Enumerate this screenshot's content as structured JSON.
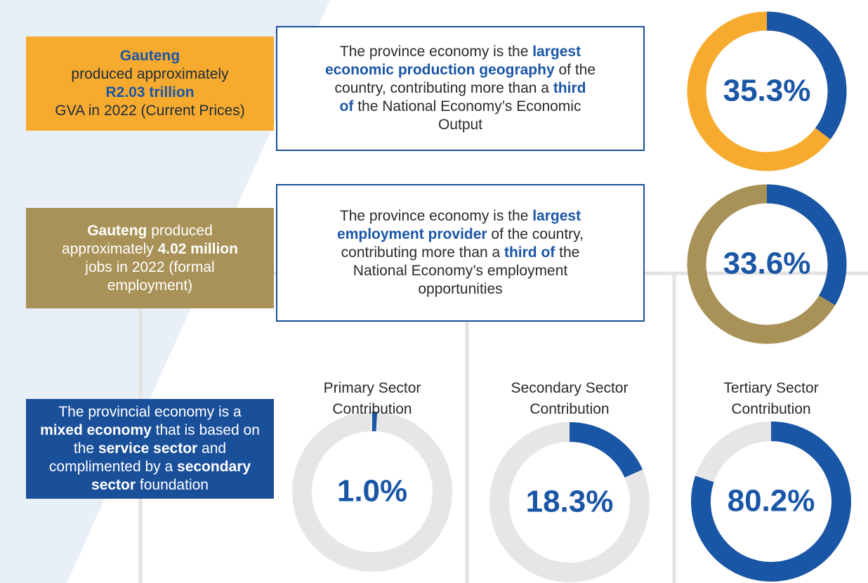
{
  "panels": [
    {
      "box": {
        "color": "#f7ab2e",
        "bold_color": "#1a56a6",
        "text_color": "#1e2a3a",
        "lines": [
          [
            {
              "text": "Gauteng",
              "bold": true
            }
          ],
          [
            {
              "text": "produced approximately",
              "bold": false
            }
          ],
          [
            {
              "text": "R2.03 trillion",
              "bold": true
            }
          ],
          [
            {
              "text": "GVA in 2022 (Current Prices)",
              "bold": false
            }
          ]
        ]
      },
      "desc": {
        "lines": [
          [
            {
              "text": "The province economy is the ",
              "bold": false
            },
            {
              "text": "largest",
              "bold": true
            }
          ],
          [
            {
              "text": "economic production geography",
              "bold": true
            },
            {
              "text": " of the",
              "bold": false
            }
          ],
          [
            {
              "text": "country, contributing more than a ",
              "bold": false
            },
            {
              "text": "third",
              "bold": true
            }
          ],
          [
            {
              "text": "of",
              "bold": true
            },
            {
              "text": " the National Economy’s Economic",
              "bold": false
            }
          ],
          [
            {
              "text": "Output",
              "bold": false
            }
          ]
        ]
      },
      "donut": {
        "value": 35.3,
        "value_label": "35.3%",
        "color": "#1a56a6",
        "ring_color": "#f7ab2e"
      }
    },
    {
      "box": {
        "color": "#a99257",
        "bold_color": "#ffffff",
        "text_color": "#ffffff",
        "lines": [
          [
            {
              "text": "Gauteng",
              "bold": true
            },
            {
              "text": " produced",
              "bold": false
            }
          ],
          [
            {
              "text": "approximately ",
              "bold": false
            },
            {
              "text": "4.02 million",
              "bold": true
            }
          ],
          [
            {
              "text": "jobs in 2022 (formal",
              "bold": false
            }
          ],
          [
            {
              "text": "employment)",
              "bold": false
            }
          ]
        ]
      },
      "desc": {
        "lines": [
          [
            {
              "text": "The province economy is the ",
              "bold": false
            },
            {
              "text": "largest",
              "bold": true
            }
          ],
          [
            {
              "text": "employment provider",
              "bold": true
            },
            {
              "text": " of the country,",
              "bold": false
            }
          ],
          [
            {
              "text": "contributing more than a ",
              "bold": false
            },
            {
              "text": "third of",
              "bold": true
            },
            {
              "text": " the",
              "bold": false
            }
          ],
          [
            {
              "text": "National Economy’s employment",
              "bold": false
            }
          ],
          [
            {
              "text": "opportunities",
              "bold": false
            }
          ]
        ]
      },
      "donut": {
        "value": 33.6,
        "value_label": "33.6%",
        "color": "#1a56a6",
        "ring_color": "#a99257"
      }
    }
  ],
  "sectors": {
    "intro": {
      "color": "#1a4f9a",
      "bold_color": "#ffffff",
      "text_color": "#ffffff",
      "lines": [
        [
          {
            "text": "The provincial economy is a",
            "bold": false
          }
        ],
        [
          {
            "text": "mixed economy",
            "bold": true
          },
          {
            "text": " that is based on",
            "bold": false
          }
        ],
        [
          {
            "text": "the ",
            "bold": false
          },
          {
            "text": "service sector",
            "bold": true
          },
          {
            "text": " and",
            "bold": false
          }
        ],
        [
          {
            "text": "complimented by a ",
            "bold": false
          },
          {
            "text": "secondary",
            "bold": true
          }
        ],
        [
          {
            "text": "sector",
            "bold": true
          },
          {
            "text": " foundation",
            "bold": false
          }
        ]
      ]
    },
    "items": [
      {
        "title": [
          "Primary Sector",
          "Contribution"
        ],
        "value": 1.0,
        "value_label": "1.0%",
        "color": "#1a56a6",
        "ring_color": "#e6e6e6"
      },
      {
        "title": [
          "Secondary Sector",
          "Contribution"
        ],
        "value": 18.3,
        "value_label": "18.3%",
        "color": "#1a56a6",
        "ring_color": "#e6e6e6"
      },
      {
        "title": [
          "Tertiary Sector",
          "Contribution"
        ],
        "value": 80.2,
        "value_label": "80.2%",
        "color": "#1a56a6",
        "ring_color": "#e6e6e6"
      }
    ]
  }
}
